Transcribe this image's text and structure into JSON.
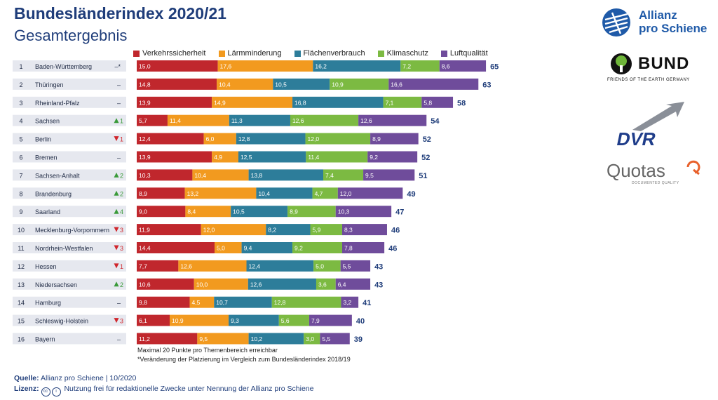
{
  "header": {
    "title": "Bundesländerindex 2020/21",
    "subtitle": "Gesamtergebnis"
  },
  "legend": [
    {
      "name": "Verkehrssicherheit",
      "color": "#c0272d"
    },
    {
      "name": "Lärmminderung",
      "color": "#f29a1f"
    },
    {
      "name": "Flächenverbrauch",
      "color": "#2d7d9a"
    },
    {
      "name": "Klimaschutz",
      "color": "#7cba42"
    },
    {
      "name": "Luftqualität",
      "color": "#6f4c9b"
    }
  ],
  "chart_data": {
    "type": "bar",
    "orientation": "horizontal",
    "stacked": true,
    "title": "Bundesländerindex 2020/21",
    "subtitle": "Gesamtergebnis",
    "rows": [
      {
        "rank": "1",
        "name": "Baden-Württemberg",
        "change": "–*",
        "dir": "none",
        "values": [
          15.0,
          17.6,
          16.2,
          7.2,
          8.6
        ],
        "labels": [
          "15,0",
          "17,6",
          "16,2",
          "7,2",
          "8,6"
        ],
        "total": "65"
      },
      {
        "rank": "2",
        "name": "Thüringen",
        "change": "–",
        "dir": "none",
        "values": [
          14.8,
          10.4,
          10.5,
          10.9,
          16.6
        ],
        "labels": [
          "14,8",
          "10,4",
          "10,5",
          "10,9",
          "16,6"
        ],
        "total": "63"
      },
      {
        "rank": "3",
        "name": "Rheinland-Pfalz",
        "change": "–",
        "dir": "none",
        "values": [
          13.9,
          14.9,
          16.8,
          7.1,
          5.8
        ],
        "labels": [
          "13,9",
          "14,9",
          "16,8",
          "7,1",
          "5,8"
        ],
        "total": "58"
      },
      {
        "rank": "4",
        "name": "Sachsen",
        "change": "1",
        "dir": "up",
        "values": [
          5.7,
          11.4,
          11.3,
          12.6,
          12.6
        ],
        "labels": [
          "5,7",
          "11,4",
          "11,3",
          "12,6",
          "12,6"
        ],
        "total": "54"
      },
      {
        "rank": "5",
        "name": "Berlin",
        "change": "1",
        "dir": "down",
        "values": [
          12.4,
          6.0,
          12.8,
          12.0,
          8.9
        ],
        "labels": [
          "12,4",
          "6,0",
          "12,8",
          "12,0",
          "8,9"
        ],
        "total": "52"
      },
      {
        "rank": "6",
        "name": "Bremen",
        "change": "–",
        "dir": "none",
        "values": [
          13.9,
          4.9,
          12.5,
          11.4,
          9.2
        ],
        "labels": [
          "13,9",
          "4,9",
          "12,5",
          "11,4",
          "9,2"
        ],
        "total": "52"
      },
      {
        "rank": "7",
        "name": "Sachsen-Anhalt",
        "change": "2",
        "dir": "up",
        "values": [
          10.3,
          10.4,
          13.8,
          7.4,
          9.5
        ],
        "labels": [
          "10,3",
          "10,4",
          "13,8",
          "7,4",
          "9,5"
        ],
        "total": "51"
      },
      {
        "rank": "8",
        "name": "Brandenburg",
        "change": "2",
        "dir": "up",
        "values": [
          8.9,
          13.2,
          10.4,
          4.7,
          12.0
        ],
        "labels": [
          "8,9",
          "13,2",
          "10,4",
          "4,7",
          "12,0"
        ],
        "total": "49"
      },
      {
        "rank": "9",
        "name": "Saarland",
        "change": "4",
        "dir": "up",
        "values": [
          9.0,
          8.4,
          10.5,
          8.9,
          10.3
        ],
        "labels": [
          "9,0",
          "8,4",
          "10,5",
          "8,9",
          "10,3"
        ],
        "total": "47"
      },
      {
        "rank": "10",
        "name": "Mecklenburg-Vorpommern",
        "change": "3",
        "dir": "down",
        "values": [
          11.9,
          12.0,
          8.2,
          5.9,
          8.3
        ],
        "labels": [
          "11,9",
          "12,0",
          "8,2",
          "5,9",
          "8,3"
        ],
        "total": "46"
      },
      {
        "rank": "11",
        "name": "Nordrhein-Westfalen",
        "change": "3",
        "dir": "down",
        "values": [
          14.4,
          5.0,
          9.4,
          9.2,
          7.8
        ],
        "labels": [
          "14,4",
          "5,0",
          "9,4",
          "9,2",
          "7,8"
        ],
        "total": "46"
      },
      {
        "rank": "12",
        "name": "Hessen",
        "change": "1",
        "dir": "down",
        "values": [
          7.7,
          12.6,
          12.4,
          5.0,
          5.5
        ],
        "labels": [
          "7,7",
          "12,6",
          "12,4",
          "5,0",
          "5,5"
        ],
        "total": "43"
      },
      {
        "rank": "13",
        "name": "Niedersachsen",
        "change": "2",
        "dir": "up",
        "values": [
          10.6,
          10.0,
          12.6,
          3.6,
          6.4
        ],
        "labels": [
          "10,6",
          "10,0",
          "12,6",
          "3,6",
          "6,4"
        ],
        "total": "43"
      },
      {
        "rank": "14",
        "name": "Hamburg",
        "change": "–",
        "dir": "none",
        "values": [
          9.8,
          4.5,
          10.7,
          12.8,
          3.2
        ],
        "labels": [
          "9,8",
          "4,5",
          "10,7",
          "12,8",
          "3,2"
        ],
        "total": "41"
      },
      {
        "rank": "15",
        "name": "Schleswig-Holstein",
        "change": "3",
        "dir": "down",
        "values": [
          6.1,
          10.9,
          9.3,
          5.6,
          7.9
        ],
        "labels": [
          "6,1",
          "10,9",
          "9,3",
          "5,6",
          "7,9"
        ],
        "total": "40"
      },
      {
        "rank": "16",
        "name": "Bayern",
        "change": "–",
        "dir": "none",
        "values": [
          11.2,
          9.5,
          10.2,
          3.0,
          5.5
        ],
        "labels": [
          "11,2",
          "9,5",
          "10,2",
          "3,0",
          "5,5"
        ],
        "total": "39"
      }
    ],
    "series_colors": [
      "#c0272d",
      "#f29a1f",
      "#2d7d9a",
      "#7cba42",
      "#6f4c9b"
    ],
    "up_color": "#3a9a3a",
    "down_color": "#d0262c",
    "legend_position": "top"
  },
  "footnotes": {
    "line1": "Maximal 20 Punkte pro Themenbereich erreichbar",
    "line2": "*Veränderung der Platzierung im Vergleich zum Bundesländerindex 2018/19"
  },
  "source": {
    "quelle_label": "Quelle:",
    "quelle_text": "Allianz pro Schiene | 10/2020",
    "lizenz_label": "Lizenz:",
    "cc_icon": "cc",
    "by_icon": "i",
    "lizenz_text": "Nutzung frei für redaktionelle Zwecke unter Nennung der Allianz pro Schiene"
  },
  "logos": {
    "allianz_line1": "Allianz",
    "allianz_line2": "pro Schiene",
    "bund": "BUND",
    "bund_sub": "FRIENDS OF THE EARTH GERMANY",
    "dvr": "DVR",
    "quotas": "Quotas",
    "quotas_sub": "DOCUMENTED QUALITY"
  }
}
